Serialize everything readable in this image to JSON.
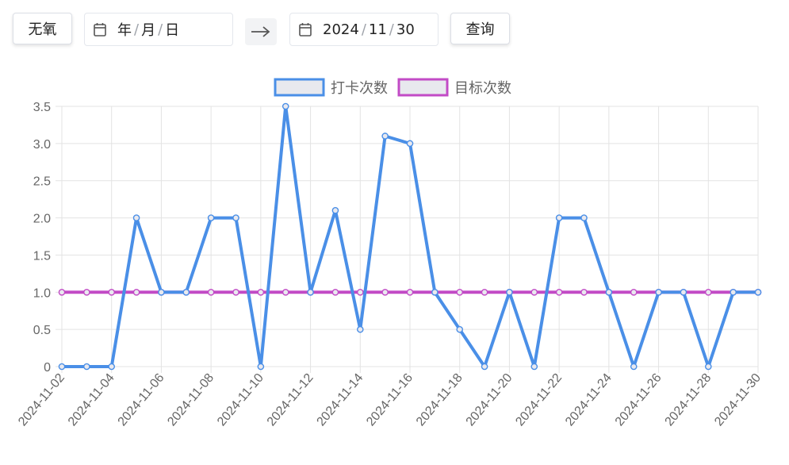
{
  "toolbar": {
    "type_button": "无氧",
    "start_date": {
      "year": "年",
      "month": "月",
      "day": "日"
    },
    "end_date": {
      "year": "2024",
      "month": "11",
      "day": "30"
    },
    "query_button": "查询"
  },
  "colors": {
    "series1": "#4a8fe7",
    "series2": "#c24bc6",
    "grid": "#e3e3e3"
  },
  "chart_data": {
    "type": "line",
    "x": [
      "2024-11-02",
      "2024-11-03",
      "2024-11-04",
      "2024-11-05",
      "2024-11-06",
      "2024-11-07",
      "2024-11-08",
      "2024-11-09",
      "2024-11-10",
      "2024-11-11",
      "2024-11-12",
      "2024-11-13",
      "2024-11-14",
      "2024-11-15",
      "2024-11-16",
      "2024-11-17",
      "2024-11-18",
      "2024-11-19",
      "2024-11-20",
      "2024-11-21",
      "2024-11-22",
      "2024-11-23",
      "2024-11-24",
      "2024-11-25",
      "2024-11-26",
      "2024-11-27",
      "2024-11-28",
      "2024-11-29",
      "2024-11-30"
    ],
    "x_tick_labels": [
      "2024-11-02",
      "2024-11-04",
      "2024-11-06",
      "2024-11-08",
      "2024-11-10",
      "2024-11-12",
      "2024-11-14",
      "2024-11-16",
      "2024-11-18",
      "2024-11-20",
      "2024-11-22",
      "2024-11-24",
      "2024-11-26",
      "2024-11-28",
      "2024-11-30"
    ],
    "y_tick_labels": [
      "0",
      "0.5",
      "1.0",
      "1.5",
      "2.0",
      "2.5",
      "3.0",
      "3.5"
    ],
    "ylim": [
      0,
      3.5
    ],
    "grid": true,
    "legend_position": "top",
    "series": [
      {
        "name": "打卡次数",
        "color": "#4a8fe7",
        "values": [
          0,
          0,
          0,
          2,
          1,
          1,
          2,
          2,
          0,
          3.5,
          1,
          2.1,
          0.5,
          3.1,
          3,
          1,
          0.5,
          0,
          1,
          0,
          2,
          2,
          1,
          0,
          1,
          1,
          0,
          1,
          1
        ]
      },
      {
        "name": "目标次数",
        "color": "#c24bc6",
        "values": [
          1,
          1,
          1,
          1,
          1,
          1,
          1,
          1,
          1,
          1,
          1,
          1,
          1,
          1,
          1,
          1,
          1,
          1,
          1,
          1,
          1,
          1,
          1,
          1,
          1,
          1,
          1,
          1,
          1
        ]
      }
    ]
  }
}
